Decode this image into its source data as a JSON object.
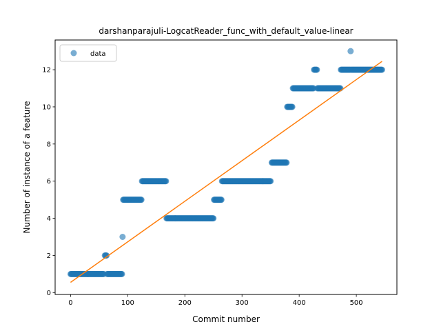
{
  "chart_data": {
    "type": "scatter",
    "title": "darshanparajuli-LogcatReader_func_with_default_value-linear",
    "xlabel": "Commit number",
    "ylabel": "Number of instance of a feature",
    "xlim": [
      -27,
      571
    ],
    "ylim": [
      -0.1,
      13.6
    ],
    "xticks": [
      0,
      100,
      200,
      300,
      400,
      500
    ],
    "yticks": [
      0,
      2,
      4,
      6,
      8,
      10,
      12
    ],
    "grid": false,
    "legend": {
      "position": "top-left",
      "entries": [
        "data"
      ]
    },
    "colors": {
      "points": "#1f77b4",
      "fit": "#ff7f0e"
    },
    "series": [
      {
        "name": "data",
        "kind": "scatter",
        "segments": [
          {
            "x_start": 0,
            "x_end": 58,
            "y": 1
          },
          {
            "x_start": 60,
            "x_end": 63,
            "y": 2
          },
          {
            "x_start": 64,
            "x_end": 90,
            "y": 1
          },
          {
            "x_start": 91,
            "x_end": 91,
            "y": 3
          },
          {
            "x_start": 92,
            "x_end": 124,
            "y": 5
          },
          {
            "x_start": 125,
            "x_end": 167,
            "y": 6
          },
          {
            "x_start": 168,
            "x_end": 250,
            "y": 4
          },
          {
            "x_start": 251,
            "x_end": 264,
            "y": 5
          },
          {
            "x_start": 265,
            "x_end": 350,
            "y": 6
          },
          {
            "x_start": 352,
            "x_end": 378,
            "y": 7
          },
          {
            "x_start": 379,
            "x_end": 388,
            "y": 10
          },
          {
            "x_start": 389,
            "x_end": 425,
            "y": 11
          },
          {
            "x_start": 426,
            "x_end": 431,
            "y": 12
          },
          {
            "x_start": 432,
            "x_end": 472,
            "y": 11
          },
          {
            "x_start": 473,
            "x_end": 489,
            "y": 12
          },
          {
            "x_start": 490,
            "x_end": 490,
            "y": 13
          },
          {
            "x_start": 491,
            "x_end": 545,
            "y": 12
          }
        ]
      },
      {
        "kind": "line",
        "x": [
          0,
          545
        ],
        "y": [
          0.55,
          12.45
        ]
      }
    ]
  }
}
